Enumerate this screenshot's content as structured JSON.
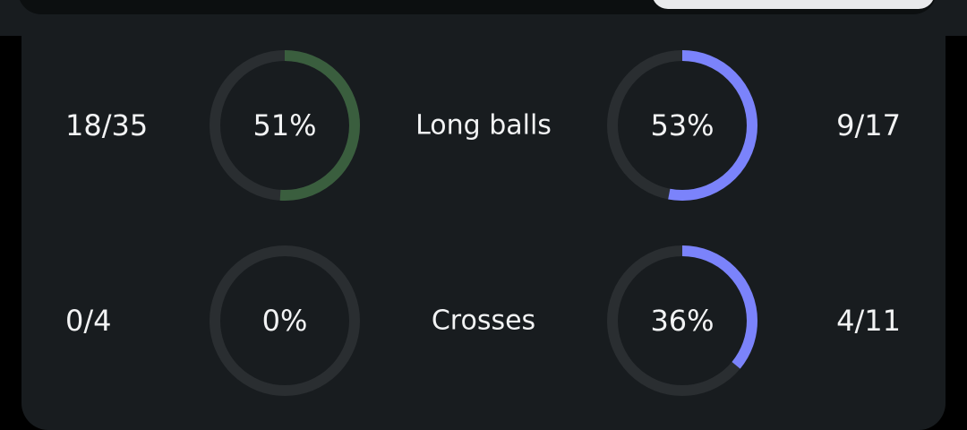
{
  "colors": {
    "track": "#2a2e31",
    "home": "#3a5e3e",
    "away": "#7b83fb"
  },
  "rows": [
    {
      "label": "Long balls",
      "home": {
        "value": "18/35",
        "percent_text": "51%",
        "percent": 51
      },
      "away": {
        "value": "9/17",
        "percent_text": "53%",
        "percent": 53
      }
    },
    {
      "label": "Crosses",
      "home": {
        "value": "0/4",
        "percent_text": "0%",
        "percent": 0
      },
      "away": {
        "value": "4/11",
        "percent_text": "36%",
        "percent": 36
      }
    }
  ]
}
